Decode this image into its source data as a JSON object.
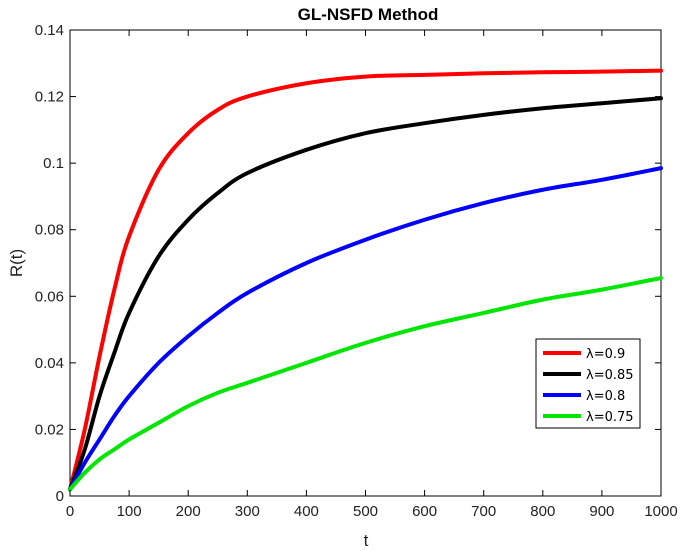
{
  "chart_data": {
    "type": "line",
    "title": "GL-NSFD Method",
    "xlabel": "t",
    "ylabel": "R(t)",
    "xlim": [
      0,
      1000
    ],
    "ylim": [
      0,
      0.14
    ],
    "xticks": [
      0,
      100,
      200,
      300,
      400,
      500,
      600,
      700,
      800,
      900,
      1000
    ],
    "yticks": [
      0,
      0.02,
      0.04,
      0.06,
      0.08,
      0.1,
      0.12,
      0.14
    ],
    "ytick_labels": [
      "0",
      "0.02",
      "0.04",
      "0.06",
      "0.08",
      "0.1",
      "0.12",
      "0.14"
    ],
    "grid": false,
    "legend_position": "bottom-right",
    "x": [
      0,
      25,
      50,
      75,
      100,
      150,
      200,
      250,
      300,
      400,
      500,
      600,
      700,
      800,
      900,
      1000
    ],
    "series": [
      {
        "name": "λ=0.9",
        "color": "#ff0000",
        "values": [
          0.002,
          0.02,
          0.042,
          0.062,
          0.078,
          0.098,
          0.109,
          0.116,
          0.12,
          0.124,
          0.126,
          0.1265,
          0.127,
          0.1273,
          0.1275,
          0.1278
        ]
      },
      {
        "name": "λ=0.85",
        "color": "#000000",
        "values": [
          0.002,
          0.014,
          0.03,
          0.043,
          0.055,
          0.072,
          0.083,
          0.091,
          0.097,
          0.104,
          0.109,
          0.112,
          0.1145,
          0.1165,
          0.118,
          0.1195
        ]
      },
      {
        "name": "λ=0.8",
        "color": "#0000ff",
        "values": [
          0.002,
          0.01,
          0.017,
          0.024,
          0.03,
          0.04,
          0.048,
          0.055,
          0.061,
          0.07,
          0.077,
          0.083,
          0.088,
          0.092,
          0.095,
          0.0985
        ]
      },
      {
        "name": "λ=0.75",
        "color": "#00e600",
        "values": [
          0.002,
          0.007,
          0.011,
          0.014,
          0.017,
          0.022,
          0.027,
          0.031,
          0.034,
          0.04,
          0.046,
          0.051,
          0.055,
          0.059,
          0.062,
          0.0655
        ]
      }
    ]
  }
}
